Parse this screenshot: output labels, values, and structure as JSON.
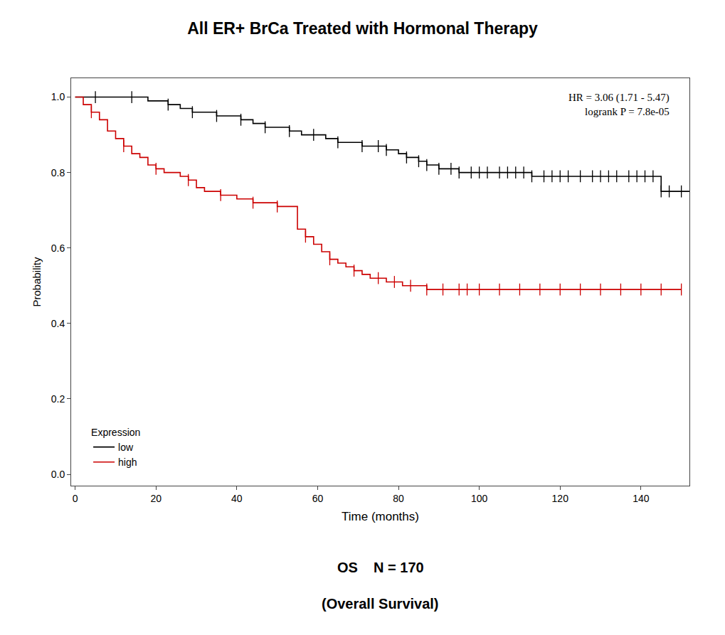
{
  "chart_data": {
    "type": "line",
    "title": "All ER+ BrCa Treated with Hormonal Therapy",
    "subtitle": [
      "OS    N = 170",
      "(Overall Survival)"
    ],
    "x_label": "Time (months)",
    "y_label": "Probability",
    "annotation": "HR = 3.06 (1.71 - 5.47)\nlogrank P = 7.8e-05",
    "legend_title": "Expression",
    "legend": "lower left",
    "grid": false,
    "xlim": [
      -1,
      152
    ],
    "ylim": [
      -0.03,
      1.05
    ],
    "xticks": [
      0,
      20,
      40,
      60,
      80,
      100,
      120,
      140
    ],
    "yticks": [
      {
        "value": 0.0,
        "label": "0.0"
      },
      0.2,
      0.4,
      0.6,
      0.8,
      {
        "value": 1.0,
        "label": "1.0"
      }
    ],
    "series": [
      {
        "name": "low",
        "type": "step",
        "color": "#000000",
        "x": [
          0,
          5,
          9,
          14,
          18,
          23,
          26,
          29,
          32,
          35,
          38,
          41,
          44,
          47,
          50,
          53,
          56,
          59,
          62,
          65,
          68,
          71,
          73,
          75,
          77,
          80,
          82,
          85,
          87,
          90,
          93,
          95,
          98,
          100,
          102,
          105,
          107,
          109,
          111,
          113,
          116,
          118,
          120,
          122,
          125,
          128,
          130,
          132,
          134,
          137,
          139,
          141,
          143,
          145,
          147,
          150,
          152
        ],
        "values": [
          1.0,
          1.0,
          1.0,
          1.0,
          0.99,
          0.98,
          0.97,
          0.96,
          0.96,
          0.95,
          0.95,
          0.94,
          0.93,
          0.92,
          0.92,
          0.91,
          0.9,
          0.9,
          0.89,
          0.88,
          0.88,
          0.87,
          0.87,
          0.87,
          0.86,
          0.85,
          0.84,
          0.83,
          0.82,
          0.81,
          0.81,
          0.8,
          0.8,
          0.8,
          0.8,
          0.8,
          0.8,
          0.8,
          0.8,
          0.79,
          0.79,
          0.79,
          0.79,
          0.79,
          0.79,
          0.79,
          0.79,
          0.79,
          0.79,
          0.79,
          0.79,
          0.79,
          0.79,
          0.75,
          0.75,
          0.75,
          0.75
        ]
      },
      {
        "name": "high",
        "type": "step",
        "color": "#cc0000",
        "x": [
          0,
          2,
          4,
          6,
          8,
          10,
          12,
          14,
          16,
          18,
          20,
          22,
          24,
          26,
          28,
          30,
          32,
          34,
          36,
          38,
          40,
          42,
          44,
          46,
          48,
          50,
          52,
          54,
          55,
          57,
          59,
          61,
          63,
          65,
          67,
          69,
          71,
          73,
          75,
          77,
          79,
          81,
          83,
          85,
          87,
          89,
          91,
          93,
          95,
          97,
          100,
          105,
          110,
          115,
          120,
          125,
          130,
          135,
          140,
          145,
          150
        ],
        "values": [
          1.0,
          0.98,
          0.96,
          0.94,
          0.91,
          0.89,
          0.87,
          0.85,
          0.84,
          0.82,
          0.81,
          0.8,
          0.8,
          0.79,
          0.78,
          0.76,
          0.75,
          0.75,
          0.74,
          0.74,
          0.73,
          0.73,
          0.72,
          0.72,
          0.72,
          0.71,
          0.71,
          0.71,
          0.65,
          0.63,
          0.61,
          0.59,
          0.57,
          0.56,
          0.55,
          0.54,
          0.53,
          0.52,
          0.52,
          0.51,
          0.51,
          0.5,
          0.5,
          0.5,
          0.49,
          0.49,
          0.49,
          0.49,
          0.49,
          0.49,
          0.49,
          0.49,
          0.49,
          0.49,
          0.49,
          0.49,
          0.49,
          0.49,
          0.49,
          0.49,
          0.49
        ]
      },
      {
        "type": "scatter",
        "marker": "line-ns",
        "color": "#000000",
        "x": [
          5,
          14,
          23,
          29,
          35,
          41,
          47,
          53,
          59,
          65,
          71,
          75,
          77,
          82,
          85,
          87,
          90,
          93,
          95,
          98,
          100,
          102,
          105,
          107,
          109,
          111,
          113,
          116,
          118,
          120,
          122,
          125,
          128,
          130,
          132,
          134,
          137,
          139,
          141,
          143,
          145,
          147,
          150
        ],
        "values": [
          1.0,
          1.0,
          0.98,
          0.96,
          0.95,
          0.94,
          0.92,
          0.91,
          0.9,
          0.88,
          0.87,
          0.87,
          0.86,
          0.84,
          0.83,
          0.82,
          0.81,
          0.81,
          0.8,
          0.8,
          0.8,
          0.8,
          0.8,
          0.8,
          0.8,
          0.8,
          0.79,
          0.79,
          0.79,
          0.79,
          0.79,
          0.79,
          0.79,
          0.79,
          0.79,
          0.79,
          0.79,
          0.79,
          0.79,
          0.79,
          0.75,
          0.75,
          0.75
        ]
      },
      {
        "type": "scatter",
        "marker": "line-ns",
        "color": "#cc0000",
        "x": [
          4,
          12,
          20,
          28,
          36,
          44,
          50,
          57,
          63,
          69,
          75,
          79,
          83,
          87,
          91,
          95,
          97,
          100,
          105,
          110,
          115,
          120,
          125,
          130,
          135,
          140,
          145,
          150
        ],
        "values": [
          0.96,
          0.87,
          0.81,
          0.78,
          0.74,
          0.72,
          0.71,
          0.63,
          0.57,
          0.54,
          0.52,
          0.51,
          0.5,
          0.49,
          0.49,
          0.49,
          0.49,
          0.49,
          0.49,
          0.49,
          0.49,
          0.49,
          0.49,
          0.49,
          0.49,
          0.49,
          0.49,
          0.49
        ]
      }
    ]
  }
}
